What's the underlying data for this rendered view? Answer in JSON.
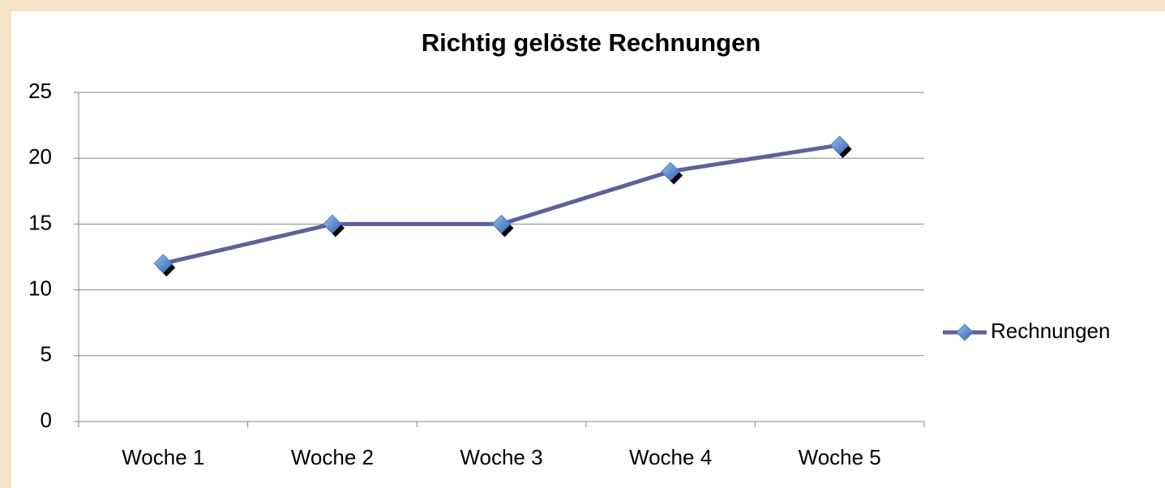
{
  "chart_data": {
    "type": "line",
    "title": "Richtig gelöste Rechnungen",
    "categories": [
      "Woche 1",
      "Woche 2",
      "Woche 3",
      "Woche 4",
      "Woche 5"
    ],
    "series": [
      {
        "name": "Rechnungen",
        "color": "#5e5f9b",
        "marker_color": "#3f7fd0",
        "values": [
          12,
          15,
          15,
          19,
          21
        ]
      }
    ],
    "ylim": [
      0,
      25
    ],
    "yticks": [
      0,
      5,
      10,
      15,
      20,
      25
    ],
    "grid": true,
    "legend": "right"
  }
}
